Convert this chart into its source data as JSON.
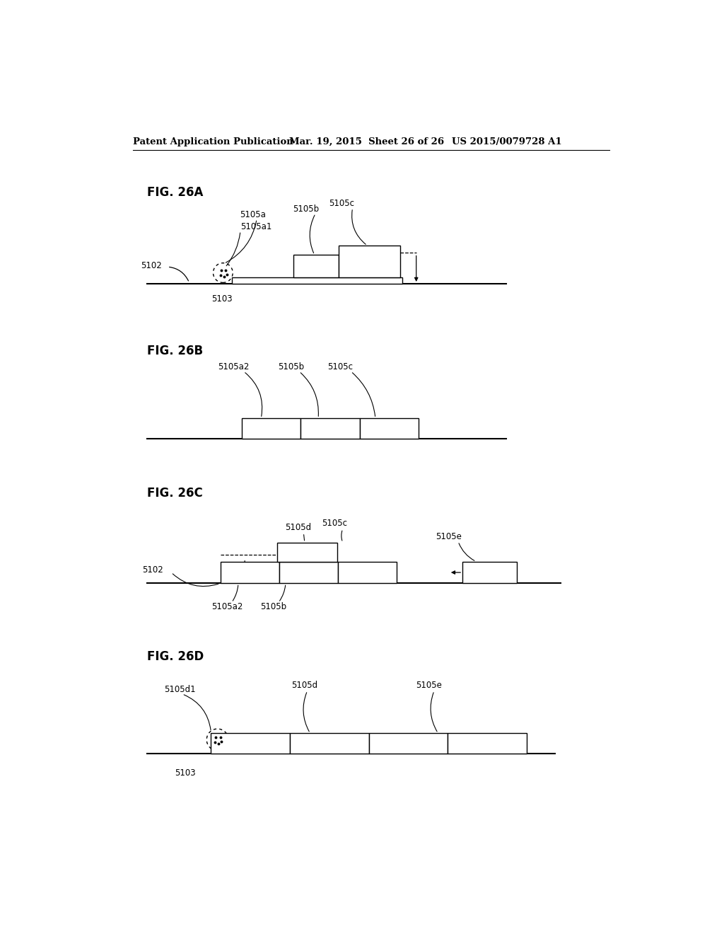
{
  "header_left": "Patent Application Publication",
  "header_mid": "Mar. 19, 2015  Sheet 26 of 26",
  "header_right": "US 2015/0079728 A1",
  "bg_color": "#ffffff",
  "line_color": "#000000",
  "fig_label_fontsize": 12,
  "annotation_fontsize": 8.5,
  "header_fontsize": 9.5
}
